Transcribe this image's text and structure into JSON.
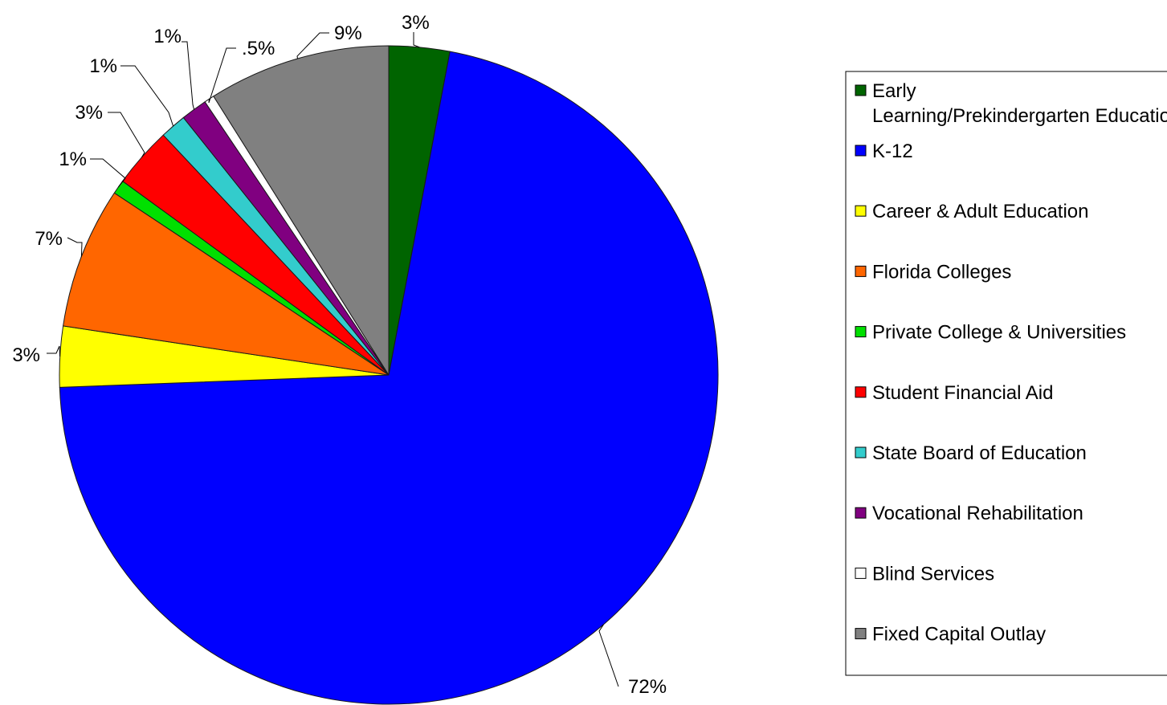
{
  "chart_data": {
    "type": "pie",
    "title": "",
    "start_angle_deg": 0,
    "direction": "clockwise",
    "legend_position": "right",
    "slices": [
      {
        "label": "Early Learning/Prekindergarten Education",
        "value": 3,
        "display": "3%",
        "color": "#006400"
      },
      {
        "label": "K-12",
        "value": 72,
        "display": "72%",
        "color": "#0000FF"
      },
      {
        "label": "Career & Adult Education",
        "value": 3,
        "display": "3%",
        "color": "#FFFF00"
      },
      {
        "label": "Florida Colleges",
        "value": 7,
        "display": "7%",
        "color": "#FF6600"
      },
      {
        "label": "Private College & Universities",
        "value": 0.7,
        "display": "1%",
        "color": "#00E000"
      },
      {
        "label": "Student Financial Aid",
        "value": 3,
        "display": "3%",
        "color": "#FF0000"
      },
      {
        "label": "State Board of Education",
        "value": 1.3,
        "display": "1%",
        "color": "#33CCCC"
      },
      {
        "label": "Vocational Rehabilitation",
        "value": 1.3,
        "display": "1%",
        "color": "#800080"
      },
      {
        "label": "Blind Services",
        "value": 0.5,
        "display": ".5%",
        "color": "#FFFFFF"
      },
      {
        "label": "Fixed Capital Outlay",
        "value": 9,
        "display": "9%",
        "color": "#808080"
      }
    ]
  }
}
